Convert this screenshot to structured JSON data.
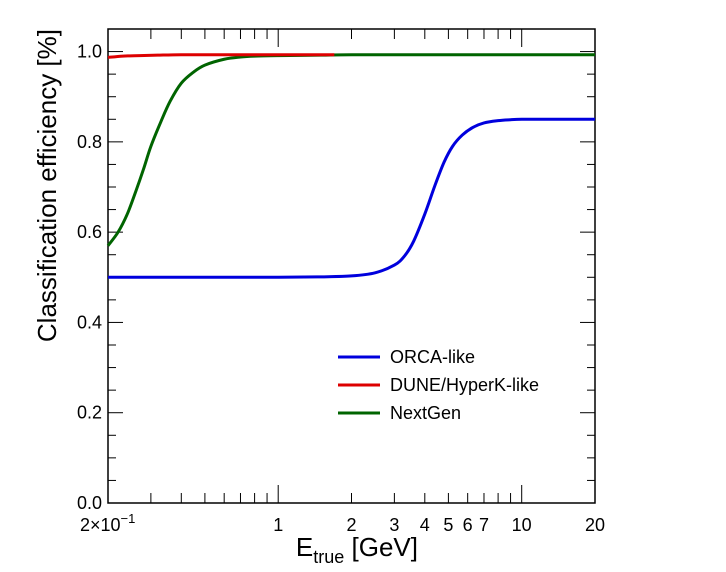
{
  "chart_data": {
    "type": "line",
    "xscale": "log",
    "xlim": [
      0.2,
      20
    ],
    "ylim": [
      0.0,
      1.05
    ],
    "xlabel_main": "E",
    "xlabel_sub": "true",
    "xlabel_unit": "[GeV]",
    "ylabel": "Classification efficiency [%]",
    "grid": false,
    "legend_position": "center-right",
    "x_tick_labels": [
      {
        "x": 0.2,
        "label": "2×10",
        "sup": "−1"
      },
      {
        "x": 1,
        "label": "1"
      },
      {
        "x": 2,
        "label": "2"
      },
      {
        "x": 3,
        "label": "3"
      },
      {
        "x": 4,
        "label": "4"
      },
      {
        "x": 5,
        "label": "5"
      },
      {
        "x": 6,
        "label": "6"
      },
      {
        "x": 7,
        "label": "7"
      },
      {
        "x": 10,
        "label": "10"
      },
      {
        "x": 20,
        "label": "20"
      }
    ],
    "y_tick_labels": [
      {
        "y": 0.0,
        "label": "0.0"
      },
      {
        "y": 0.2,
        "label": "0.2"
      },
      {
        "y": 0.4,
        "label": "0.4"
      },
      {
        "y": 0.6,
        "label": "0.6"
      },
      {
        "y": 0.8,
        "label": "0.8"
      },
      {
        "y": 1.0,
        "label": "1.0"
      }
    ],
    "series": [
      {
        "name": "ORCA-like",
        "color": "#0000dd",
        "x": [
          0.2,
          0.5,
          1.0,
          1.5,
          2.0,
          2.5,
          3.0,
          3.3,
          3.6,
          4.0,
          4.4,
          4.8,
          5.2,
          5.7,
          6.3,
          7.0,
          8.0,
          9.0,
          10.0,
          12.0,
          15.0,
          20.0
        ],
        "y": [
          0.5,
          0.5,
          0.5,
          0.501,
          0.503,
          0.51,
          0.527,
          0.547,
          0.58,
          0.64,
          0.703,
          0.755,
          0.79,
          0.815,
          0.832,
          0.842,
          0.847,
          0.849,
          0.85,
          0.85,
          0.85,
          0.85
        ]
      },
      {
        "name": "DUNE/HyperK-like",
        "color": "#dd0000",
        "x": [
          0.2,
          0.23,
          0.27,
          0.32,
          0.4,
          0.6,
          1.0,
          1.7
        ],
        "y": [
          0.987,
          0.99,
          0.991,
          0.992,
          0.993,
          0.993,
          0.993,
          0.993
        ]
      },
      {
        "name": "NextGen",
        "color": "#006400",
        "x": [
          0.2,
          0.22,
          0.24,
          0.26,
          0.28,
          0.3,
          0.33,
          0.36,
          0.4,
          0.45,
          0.5,
          0.6,
          0.7,
          0.8,
          1.0,
          1.5,
          2.0,
          5.0,
          10.0,
          20.0
        ],
        "y": [
          0.57,
          0.6,
          0.64,
          0.69,
          0.74,
          0.79,
          0.845,
          0.89,
          0.93,
          0.955,
          0.97,
          0.983,
          0.988,
          0.99,
          0.991,
          0.992,
          0.993,
          0.993,
          0.993,
          0.993
        ]
      }
    ]
  }
}
